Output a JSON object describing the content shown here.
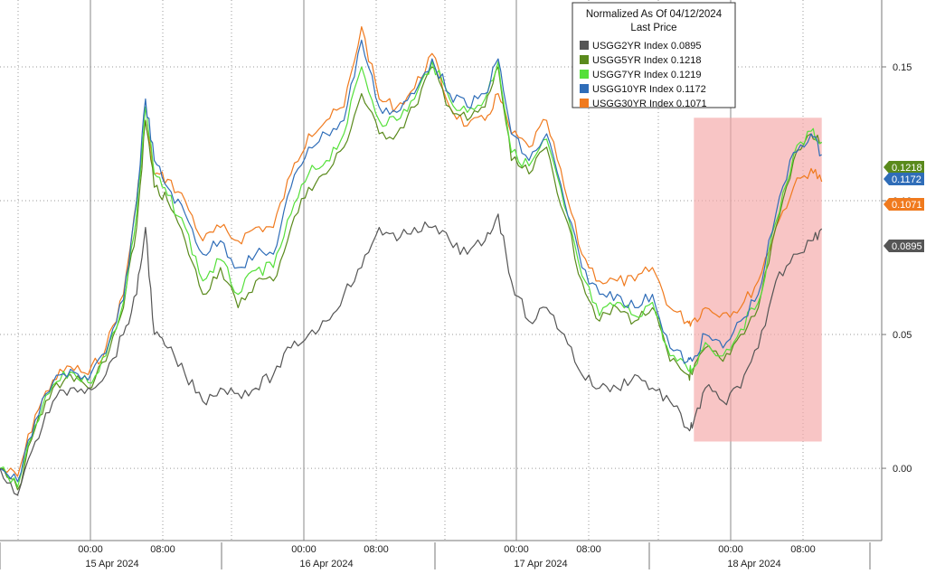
{
  "chart_data": {
    "type": "line",
    "legend": {
      "title": "Normalized As Of 04/12/2024",
      "subtitle": "Last Price",
      "placement": "top-right"
    },
    "x_axis": {
      "time_labels": [
        "00:00",
        "08:00",
        "00:00",
        "08:00",
        "00:00",
        "08:00",
        "00:00",
        "08:00"
      ],
      "date_labels": [
        "15 Apr 2024",
        "16 Apr 2024",
        "17 Apr 2024",
        "18 Apr 2024"
      ]
    },
    "y_axis": {
      "ticks": [
        0.0,
        0.05,
        0.1,
        0.15
      ],
      "tick_labels": [
        "0.00",
        "0.05",
        "0.10",
        "0.15"
      ],
      "ylim": [
        -0.027,
        0.175
      ],
      "position": "right",
      "grid": true
    },
    "highlight_region": {
      "x_start": 0.787,
      "x_end": 0.932,
      "y_start": 0.01,
      "y_end": 0.131,
      "color": "#f4a6a6"
    },
    "series": [
      {
        "name": "USGG2YR Index",
        "last_value": 0.0895,
        "last_label": "0.0895",
        "color": "#555555",
        "x": [
          0.0,
          0.02,
          0.04,
          0.06,
          0.08,
          0.1,
          0.12,
          0.14,
          0.155,
          0.165,
          0.175,
          0.19,
          0.21,
          0.23,
          0.25,
          0.27,
          0.29,
          0.31,
          0.33,
          0.35,
          0.37,
          0.39,
          0.41,
          0.43,
          0.45,
          0.47,
          0.49,
          0.51,
          0.53,
          0.55,
          0.565,
          0.58,
          0.6,
          0.62,
          0.64,
          0.66,
          0.68,
          0.7,
          0.72,
          0.74,
          0.76,
          0.78,
          0.785,
          0.8,
          0.82,
          0.84,
          0.86,
          0.88,
          0.9,
          0.92,
          0.932
        ],
        "y": [
          0.0,
          -0.01,
          0.01,
          0.025,
          0.03,
          0.03,
          0.035,
          0.05,
          0.065,
          0.09,
          0.05,
          0.045,
          0.035,
          0.025,
          0.03,
          0.028,
          0.03,
          0.035,
          0.045,
          0.05,
          0.055,
          0.065,
          0.075,
          0.09,
          0.085,
          0.09,
          0.09,
          0.085,
          0.08,
          0.085,
          0.095,
          0.07,
          0.055,
          0.06,
          0.05,
          0.035,
          0.03,
          0.03,
          0.035,
          0.03,
          0.025,
          0.015,
          0.015,
          0.03,
          0.025,
          0.03,
          0.045,
          0.07,
          0.08,
          0.085,
          0.0895
        ]
      },
      {
        "name": "USGG5YR Index",
        "last_value": 0.1218,
        "last_label": "0.1218",
        "color": "#5a8a1c",
        "x": [
          0.0,
          0.02,
          0.04,
          0.06,
          0.08,
          0.1,
          0.12,
          0.14,
          0.155,
          0.165,
          0.175,
          0.19,
          0.21,
          0.23,
          0.25,
          0.27,
          0.29,
          0.31,
          0.33,
          0.35,
          0.37,
          0.39,
          0.41,
          0.43,
          0.45,
          0.47,
          0.49,
          0.51,
          0.53,
          0.55,
          0.565,
          0.58,
          0.6,
          0.62,
          0.64,
          0.66,
          0.68,
          0.7,
          0.72,
          0.74,
          0.76,
          0.78,
          0.785,
          0.8,
          0.82,
          0.84,
          0.86,
          0.88,
          0.9,
          0.92,
          0.932
        ],
        "y": [
          0.0,
          -0.008,
          0.015,
          0.03,
          0.035,
          0.03,
          0.04,
          0.06,
          0.09,
          0.13,
          0.105,
          0.1,
          0.085,
          0.065,
          0.075,
          0.06,
          0.07,
          0.07,
          0.09,
          0.105,
          0.11,
          0.12,
          0.14,
          0.125,
          0.125,
          0.135,
          0.15,
          0.135,
          0.13,
          0.135,
          0.15,
          0.115,
          0.11,
          0.12,
          0.095,
          0.07,
          0.055,
          0.06,
          0.055,
          0.06,
          0.04,
          0.035,
          0.035,
          0.045,
          0.04,
          0.05,
          0.06,
          0.09,
          0.115,
          0.125,
          0.1218
        ]
      },
      {
        "name": "USGG7YR Index",
        "last_value": 0.1219,
        "last_label": "0.1219",
        "color": "#55e03a",
        "x": [
          0.0,
          0.02,
          0.04,
          0.06,
          0.08,
          0.1,
          0.12,
          0.14,
          0.155,
          0.165,
          0.175,
          0.19,
          0.21,
          0.23,
          0.25,
          0.27,
          0.29,
          0.31,
          0.33,
          0.35,
          0.37,
          0.39,
          0.41,
          0.43,
          0.45,
          0.47,
          0.49,
          0.51,
          0.53,
          0.55,
          0.565,
          0.58,
          0.6,
          0.62,
          0.64,
          0.66,
          0.68,
          0.7,
          0.72,
          0.74,
          0.76,
          0.78,
          0.785,
          0.8,
          0.82,
          0.84,
          0.86,
          0.88,
          0.9,
          0.92,
          0.932
        ],
        "y": [
          0.0,
          -0.007,
          0.016,
          0.031,
          0.036,
          0.032,
          0.042,
          0.062,
          0.095,
          0.135,
          0.11,
          0.102,
          0.09,
          0.07,
          0.078,
          0.065,
          0.074,
          0.075,
          0.095,
          0.11,
          0.115,
          0.125,
          0.15,
          0.13,
          0.13,
          0.138,
          0.152,
          0.138,
          0.133,
          0.138,
          0.152,
          0.118,
          0.113,
          0.123,
          0.098,
          0.072,
          0.057,
          0.062,
          0.057,
          0.062,
          0.042,
          0.037,
          0.037,
          0.047,
          0.042,
          0.052,
          0.062,
          0.092,
          0.117,
          0.126,
          0.1219
        ]
      },
      {
        "name": "USGG10YR Index",
        "last_value": 0.1172,
        "last_label": "0.1172",
        "color": "#2f6db8",
        "x": [
          0.0,
          0.02,
          0.04,
          0.06,
          0.08,
          0.1,
          0.12,
          0.14,
          0.155,
          0.165,
          0.175,
          0.19,
          0.21,
          0.23,
          0.25,
          0.27,
          0.29,
          0.31,
          0.33,
          0.35,
          0.37,
          0.39,
          0.41,
          0.43,
          0.45,
          0.47,
          0.49,
          0.51,
          0.53,
          0.55,
          0.565,
          0.58,
          0.6,
          0.62,
          0.64,
          0.66,
          0.68,
          0.7,
          0.72,
          0.74,
          0.76,
          0.78,
          0.785,
          0.8,
          0.82,
          0.84,
          0.86,
          0.88,
          0.9,
          0.92,
          0.932
        ],
        "y": [
          0.0,
          -0.005,
          0.018,
          0.032,
          0.037,
          0.033,
          0.043,
          0.063,
          0.1,
          0.138,
          0.115,
          0.105,
          0.095,
          0.08,
          0.085,
          0.075,
          0.08,
          0.08,
          0.105,
          0.12,
          0.125,
          0.13,
          0.16,
          0.135,
          0.133,
          0.14,
          0.153,
          0.14,
          0.135,
          0.14,
          0.153,
          0.125,
          0.115,
          0.125,
          0.1,
          0.075,
          0.065,
          0.065,
          0.06,
          0.065,
          0.045,
          0.04,
          0.04,
          0.05,
          0.045,
          0.055,
          0.065,
          0.095,
          0.118,
          0.125,
          0.1172
        ]
      },
      {
        "name": "USGG30YR Index",
        "last_value": 0.1071,
        "last_label": "0.1071",
        "color": "#f07a1e",
        "x": [
          0.0,
          0.02,
          0.04,
          0.06,
          0.08,
          0.1,
          0.12,
          0.14,
          0.155,
          0.165,
          0.175,
          0.19,
          0.21,
          0.23,
          0.25,
          0.27,
          0.29,
          0.31,
          0.33,
          0.35,
          0.37,
          0.39,
          0.41,
          0.43,
          0.45,
          0.47,
          0.49,
          0.51,
          0.53,
          0.55,
          0.565,
          0.58,
          0.6,
          0.62,
          0.64,
          0.66,
          0.68,
          0.7,
          0.72,
          0.74,
          0.76,
          0.78,
          0.785,
          0.8,
          0.82,
          0.84,
          0.86,
          0.88,
          0.9,
          0.92,
          0.932
        ],
        "y": [
          0.0,
          -0.003,
          0.02,
          0.033,
          0.038,
          0.035,
          0.045,
          0.065,
          0.1,
          0.13,
          0.11,
          0.108,
          0.1,
          0.085,
          0.09,
          0.085,
          0.09,
          0.09,
          0.11,
          0.125,
          0.13,
          0.135,
          0.165,
          0.138,
          0.135,
          0.142,
          0.155,
          0.135,
          0.128,
          0.13,
          0.14,
          0.125,
          0.12,
          0.13,
          0.105,
          0.08,
          0.07,
          0.07,
          0.07,
          0.075,
          0.06,
          0.055,
          0.055,
          0.06,
          0.058,
          0.06,
          0.07,
          0.09,
          0.105,
          0.112,
          0.1071
        ]
      }
    ]
  }
}
